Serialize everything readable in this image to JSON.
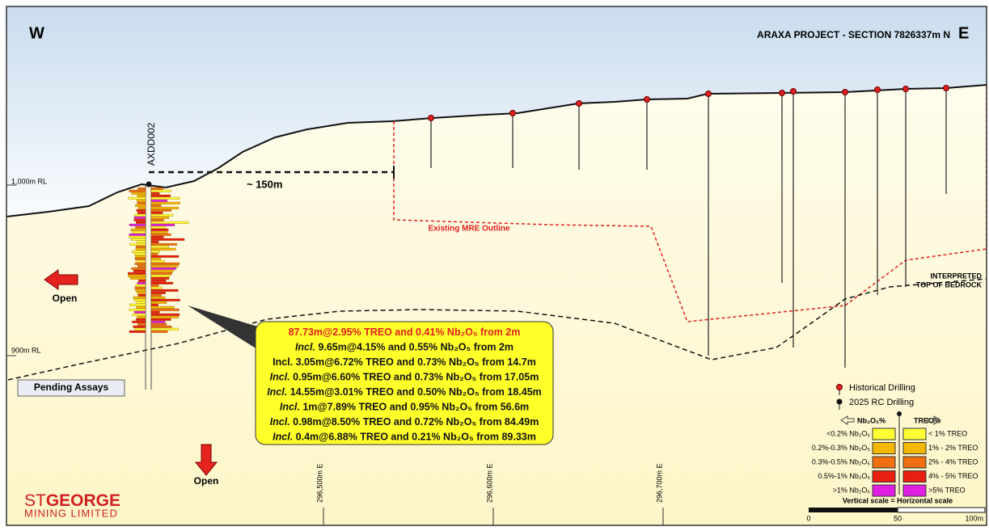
{
  "header": {
    "west": "W",
    "title": "ARAXA PROJECT - SECTION 7826337m N",
    "east": "E"
  },
  "rl_labels": [
    "1,000m RL",
    "900m RL"
  ],
  "hole": {
    "name": "AXDD002",
    "distance": "~ 150m",
    "status": "Pending Assays"
  },
  "mre_label": "Existing MRE Outline",
  "bedrock_label": [
    "INTERPRETED",
    "TOP OF BEDROCK"
  ],
  "open_left": "Open",
  "open_down": "Open",
  "intercepts": [
    {
      "text": "87.73m@2.95% TREO and 0.41% Nb₂O₅ from 2m"
    },
    {
      "lead": "Incl.",
      "text": " 9.65m@4.15% and 0.55% Nb₂O₅ from 2m"
    },
    {
      "text": "Incl. 3.05m@6.72% TREO and 0.73% Nb₂O₅ from 14.7m"
    },
    {
      "lead": "Incl.",
      "text": " 0.95m@6.60% TREO and 0.73% Nb₂O₅ from 17.05m"
    },
    {
      "lead": "Incl.",
      "text": " 14.55m@3.01% TREO and 0.50% Nb₂O₅ from 18.45m"
    },
    {
      "lead": "Incl.",
      "text": " 1m@7.89% TREO and 0.95% Nb₂O₅ from 56.6m"
    },
    {
      "lead": "Incl.",
      "text": " 0.98m@8.50% TREO and 0.72% Nb₂O₅ from 84.49m"
    },
    {
      "lead": "Incl.",
      "text": " 0.4m@6.88% TREO and 0.21% Nb₂O₅ from 89.33m"
    }
  ],
  "eastings": [
    "296,500m E",
    "296,600m E",
    "296,700m E"
  ],
  "legend": {
    "historical": "Historical Drilling",
    "rc": "2025 RC Drilling",
    "left_header": "Nb₂O₅%",
    "right_header": "TREO%",
    "rows": [
      {
        "left": "<0.2% Nb₂O₅",
        "right": "< 1% TREO",
        "left_color": "#ffff33",
        "right_color": "#ffff33"
      },
      {
        "left": "0.2%-0.3% Nb₂O₅",
        "right": "1% - 2% TREO",
        "left_color": "#f5b800",
        "right_color": "#f5b800"
      },
      {
        "left": "0.3%-0.5% Nb₂O₅",
        "right": "2% - 4% TREO",
        "left_color": "#f07010",
        "right_color": "#f07010"
      },
      {
        "left": "0.5%-1% Nb₂O₅",
        "right": "4% - 5% TREO",
        "left_color": "#e81e10",
        "right_color": "#e81e10"
      },
      {
        "left": ">1% Nb₂O₅",
        "right": ">5% TREO",
        "left_color": "#e020e0",
        "right_color": "#e020e0"
      }
    ]
  },
  "scale": {
    "caption": "Vertical scale = Horizontal scale",
    "labels": [
      "0",
      "50",
      "100m"
    ]
  },
  "logo": {
    "st": "ST",
    "george": "GEORGE",
    "sub": "MINING LIMITED"
  }
}
